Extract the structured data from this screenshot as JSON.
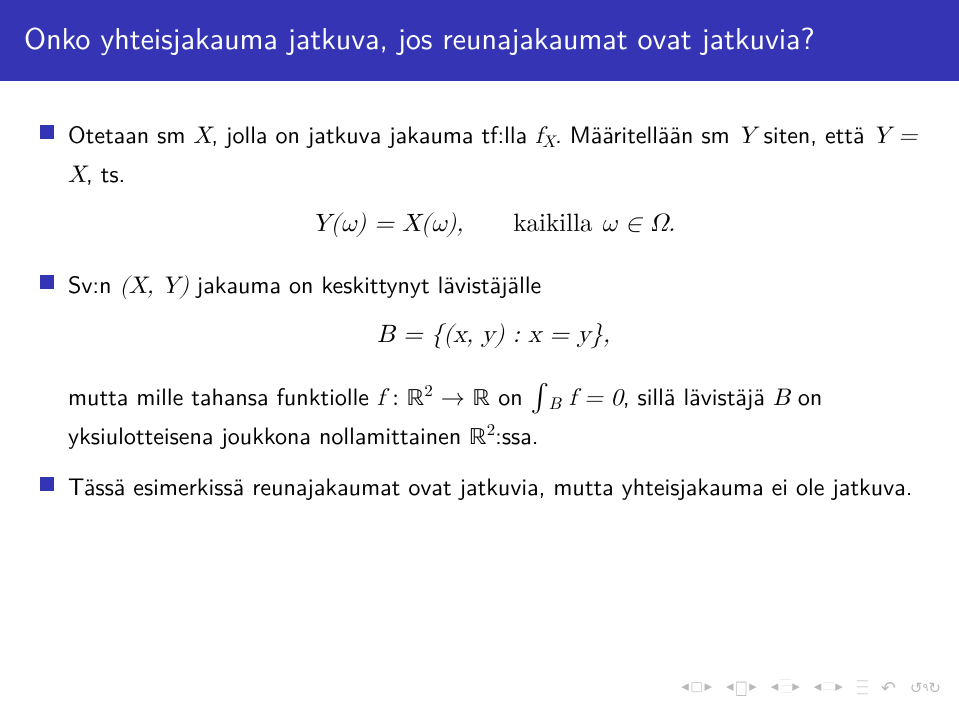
{
  "colors": {
    "title_bg": "#3434b4",
    "title_fg": "#ffffff",
    "body_fg": "#000000",
    "nav_fg": "#b9b9b9",
    "bg": "#ffffff"
  },
  "title": "Onko yhteisjakauma jatkuva, jos reunajakaumat ovat jatkuvia?",
  "items": [
    {
      "pre": "Otetaan sm ",
      "m1": "X",
      "mid1": ", jolla on jatkuva jakauma tf:lla ",
      "m2": "f",
      "m2sub": "X",
      "mid2": ". Määritellään sm ",
      "m3": "Y",
      "mid3": " siten, että ",
      "m4": "Y = X",
      "tail": ", ts."
    },
    {
      "display_left": "Y(ω) = X(ω),",
      "display_right_text": "kaikilla ",
      "display_right_math": "ω ∈ Ω."
    },
    {
      "pre": "Sv:n ",
      "m1": "(X, Y)",
      "tail": " jakauma on keskittynyt lävistäjälle"
    },
    {
      "display": "B = {(x, y) : x = y},"
    },
    {
      "pre": "mutta mille tahansa funktiolle ",
      "m_f": "f",
      "m_colon": " : ",
      "m_R2": "ℝ",
      "m_sup": "2",
      "m_arrow": " → ",
      "m_R": "ℝ",
      "m_on": " on ",
      "m_int": "∫",
      "m_intsub": "B",
      "m_feq": " f = 0",
      "mid": ", sillä lävistäjä ",
      "m_B": "B",
      "mid2": " on yksiulotteisena joukkona nollamittainen ",
      "m_R2b": "ℝ",
      "m_sup2": "2",
      "tail": ":ssa."
    },
    {
      "text": "Tässä esimerkissä reunajakaumat ovat jatkuvia, mutta yhteisjakauma ei ole jatkuva."
    }
  ],
  "nav": {
    "first": "◂",
    "box": "□",
    "play": "▸",
    "bars": "≡",
    "undo": "↶",
    "loop_left": "↺",
    "loop_right": "↻"
  }
}
